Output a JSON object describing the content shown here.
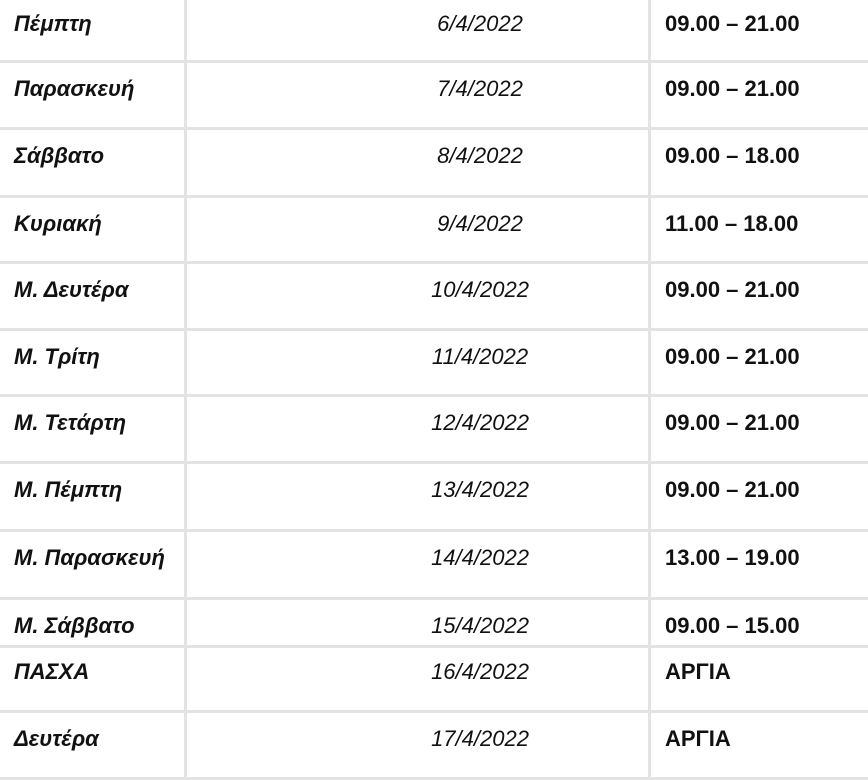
{
  "schedule": [
    {
      "day": "Πέμπτη",
      "date": "6/4/2022",
      "hours": "09.00 – 21.00"
    },
    {
      "day": "Παρασκευή",
      "date": "7/4/2022",
      "hours": "09.00 – 21.00"
    },
    {
      "day": "Σάββατο",
      "date": "8/4/2022",
      "hours": "09.00 – 18.00"
    },
    {
      "day": "Κυριακή",
      "date": "9/4/2022",
      "hours": "11.00 – 18.00"
    },
    {
      "day": "Μ. Δευτέρα",
      "date": "10/4/2022",
      "hours": "09.00 – 21.00"
    },
    {
      "day": "Μ. Τρίτη",
      "date": "11/4/2022",
      "hours": "09.00 – 21.00"
    },
    {
      "day": "Μ. Τετάρτη",
      "date": "12/4/2022",
      "hours": "09.00 – 21.00"
    },
    {
      "day": "Μ. Πέμπτη",
      "date": "13/4/2022",
      "hours": "09.00 – 21.00"
    },
    {
      "day": "Μ. Παρασκευή",
      "date": "14/4/2022",
      "hours": "13.00 – 19.00"
    },
    {
      "day": "Μ. Σάββατο",
      "date": "15/4/2022",
      "hours": "09.00 – 15.00"
    },
    {
      "day": "ΠΑΣΧΑ",
      "date": "16/4/2022",
      "hours": "ΑΡΓΙΑ"
    },
    {
      "day": "Δευτέρα",
      "date": "17/4/2022",
      "hours": "ΑΡΓΙΑ"
    }
  ]
}
